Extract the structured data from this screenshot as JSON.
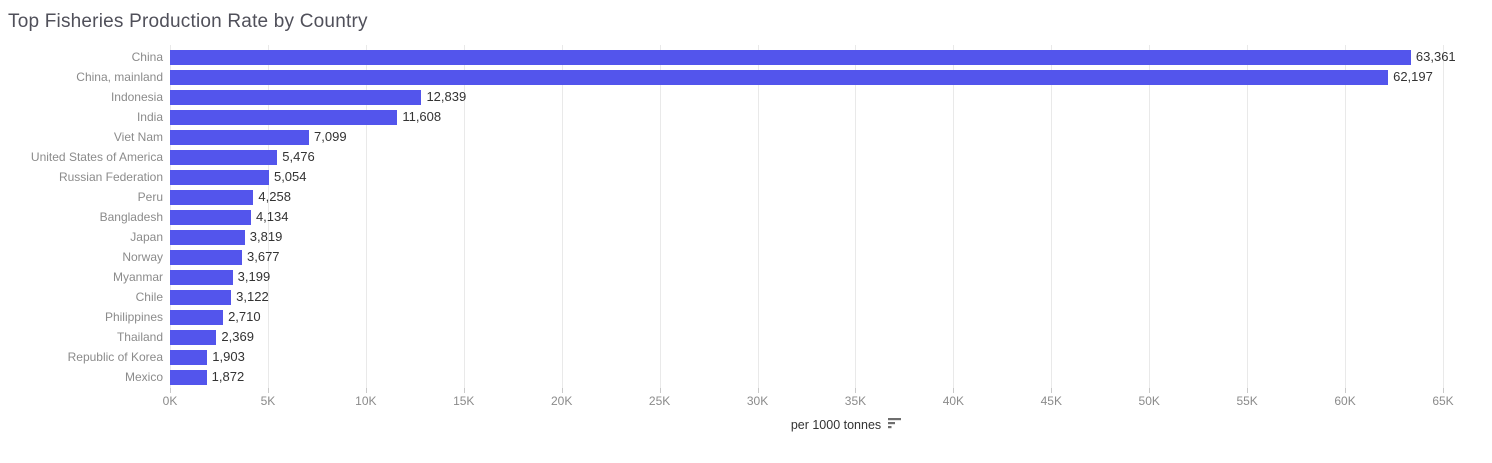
{
  "title": "Top Fisheries Production Rate by Country",
  "chart_data": {
    "type": "bar",
    "orientation": "horizontal",
    "title": "Top Fisheries Production Rate by Country",
    "categories": [
      "China",
      "China, mainland",
      "Indonesia",
      "India",
      "Viet Nam",
      "United States of America",
      "Russian Federation",
      "Peru",
      "Bangladesh",
      "Japan",
      "Norway",
      "Myanmar",
      "Chile",
      "Philippines",
      "Thailand",
      "Republic of Korea",
      "Mexico"
    ],
    "values": [
      63361,
      62197,
      12839,
      11608,
      7099,
      5476,
      5054,
      4258,
      4134,
      3819,
      3677,
      3199,
      3122,
      2710,
      2369,
      1903,
      1872
    ],
    "value_labels": [
      "63,361",
      "62,197",
      "12,839",
      "11,608",
      "7,099",
      "5,476",
      "5,054",
      "4,258",
      "4,134",
      "3,819",
      "3,677",
      "3,199",
      "3,122",
      "2,710",
      "2,369",
      "1,903",
      "1,872"
    ],
    "xlabel": "per 1000 tonnes",
    "ylabel": "",
    "xlim": [
      0,
      65000
    ],
    "grid": true,
    "sort": "descending",
    "legend": "none",
    "ticks": [
      {
        "value": 0,
        "label": "0K"
      },
      {
        "value": 5000,
        "label": "5K"
      },
      {
        "value": 10000,
        "label": "10K"
      },
      {
        "value": 15000,
        "label": "15K"
      },
      {
        "value": 20000,
        "label": "20K"
      },
      {
        "value": 25000,
        "label": "25K"
      },
      {
        "value": 30000,
        "label": "30K"
      },
      {
        "value": 35000,
        "label": "35K"
      },
      {
        "value": 40000,
        "label": "40K"
      },
      {
        "value": 45000,
        "label": "45K"
      },
      {
        "value": 50000,
        "label": "50K"
      },
      {
        "value": 55000,
        "label": "55K"
      },
      {
        "value": 60000,
        "label": "60K"
      },
      {
        "value": 65000,
        "label": "65K"
      }
    ]
  },
  "colors": {
    "bar": "#5355ec",
    "title_text": "#50505a",
    "category_label": "#8b8b8b",
    "value_label": "#333333",
    "tick_label": "#8b8b8b",
    "gridline": "#e9e9e9",
    "tick_mark": "#c9c9c9",
    "axis_title": "#333333",
    "sort_icon": "#6e6e6e",
    "background": "#ffffff"
  },
  "icons": {
    "sort": "sort-descending-icon"
  }
}
